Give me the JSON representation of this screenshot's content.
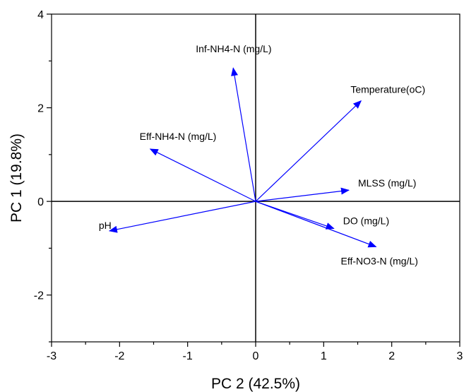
{
  "chart_data": {
    "type": "biplot",
    "title": "",
    "xlabel": "PC 2 (42.5%)",
    "ylabel": "PC 1 (19.8%)",
    "xlim": [
      -3,
      3
    ],
    "ylim": [
      -3,
      4
    ],
    "xticks": [
      -3,
      -2,
      -1,
      0,
      1,
      2,
      3
    ],
    "yticks": [
      -2,
      0,
      2,
      4
    ],
    "xtick_labels": [
      "-3",
      "-2",
      "-1",
      "0",
      "1",
      "2",
      "3"
    ],
    "ytick_labels": [
      "-2",
      "0",
      "2",
      "4"
    ],
    "grid": false,
    "origin_lines": true,
    "arrow_color": "#0000ff",
    "vectors": [
      {
        "name": "Inf-NH4-N (mg/L)",
        "x": -0.33,
        "y": 2.85
      },
      {
        "name": "Temperature(oC)",
        "x": 1.55,
        "y": 2.15
      },
      {
        "name": "Eff-NH4-N (mg/L)",
        "x": -1.55,
        "y": 1.12
      },
      {
        "name": "MLSS (mg/L)",
        "x": 1.37,
        "y": 0.24
      },
      {
        "name": "pH",
        "x": -2.15,
        "y": -0.63
      },
      {
        "name": "DO (mg/L)",
        "x": 1.15,
        "y": -0.58
      },
      {
        "name": "Eff-NO3-N (mg/L)",
        "x": 1.77,
        "y": -0.97
      }
    ]
  }
}
